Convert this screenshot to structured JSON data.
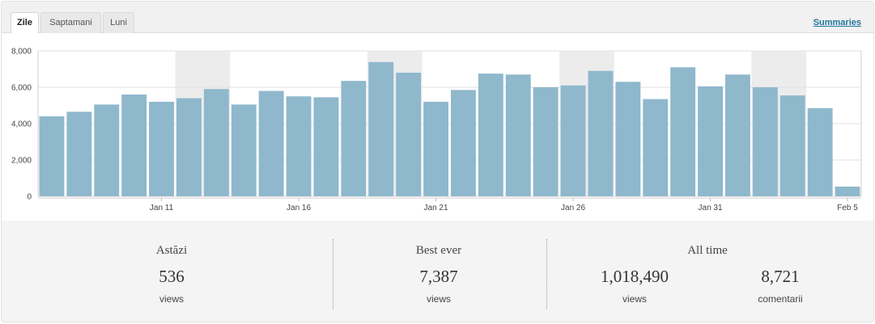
{
  "tabs": [
    {
      "label": "Zile",
      "active": true
    },
    {
      "label": "Saptamani",
      "active": false
    },
    {
      "label": "Luni",
      "active": false
    }
  ],
  "summaries_link": "Summaries",
  "colors": {
    "bar": "#8fb8cc",
    "highlight_band": "#ececec",
    "grid": "#e2e2e2",
    "link": "#21759b"
  },
  "chart_data": {
    "type": "bar",
    "ylim": [
      0,
      8000
    ],
    "y_ticks": [
      "0",
      "2,000",
      "4,000",
      "6,000",
      "8,000"
    ],
    "y_tick_values": [
      0,
      2000,
      4000,
      6000,
      8000
    ],
    "x_tick_labels": [
      {
        "label": "Jan 11",
        "index": 4.5
      },
      {
        "label": "Jan 16",
        "index": 9.5
      },
      {
        "label": "Jan 21",
        "index": 14.5
      },
      {
        "label": "Jan 26",
        "index": 19.5
      },
      {
        "label": "Jan 31",
        "index": 24.5
      },
      {
        "label": "Feb 5",
        "index": 29.5
      }
    ],
    "values": [
      4400,
      4650,
      5050,
      5600,
      5200,
      5400,
      5900,
      5050,
      5800,
      5500,
      5450,
      6350,
      7387,
      6800,
      5200,
      5850,
      6750,
      6700,
      6000,
      6100,
      6900,
      6300,
      5350,
      7100,
      6050,
      6700,
      6000,
      5550,
      4850,
      536
    ],
    "highlight_ranges": [
      [
        5,
        6
      ],
      [
        12,
        13
      ],
      [
        19,
        20
      ],
      [
        26,
        27
      ]
    ]
  },
  "stats": {
    "today": {
      "title": "Astăzi",
      "value": "536",
      "unit": "views"
    },
    "best": {
      "title": "Best ever",
      "value": "7,387",
      "unit": "views"
    },
    "all_time": {
      "title": "All time",
      "views": {
        "value": "1,018,490",
        "unit": "views"
      },
      "comments": {
        "value": "8,721",
        "unit": "comentarii"
      }
    }
  }
}
